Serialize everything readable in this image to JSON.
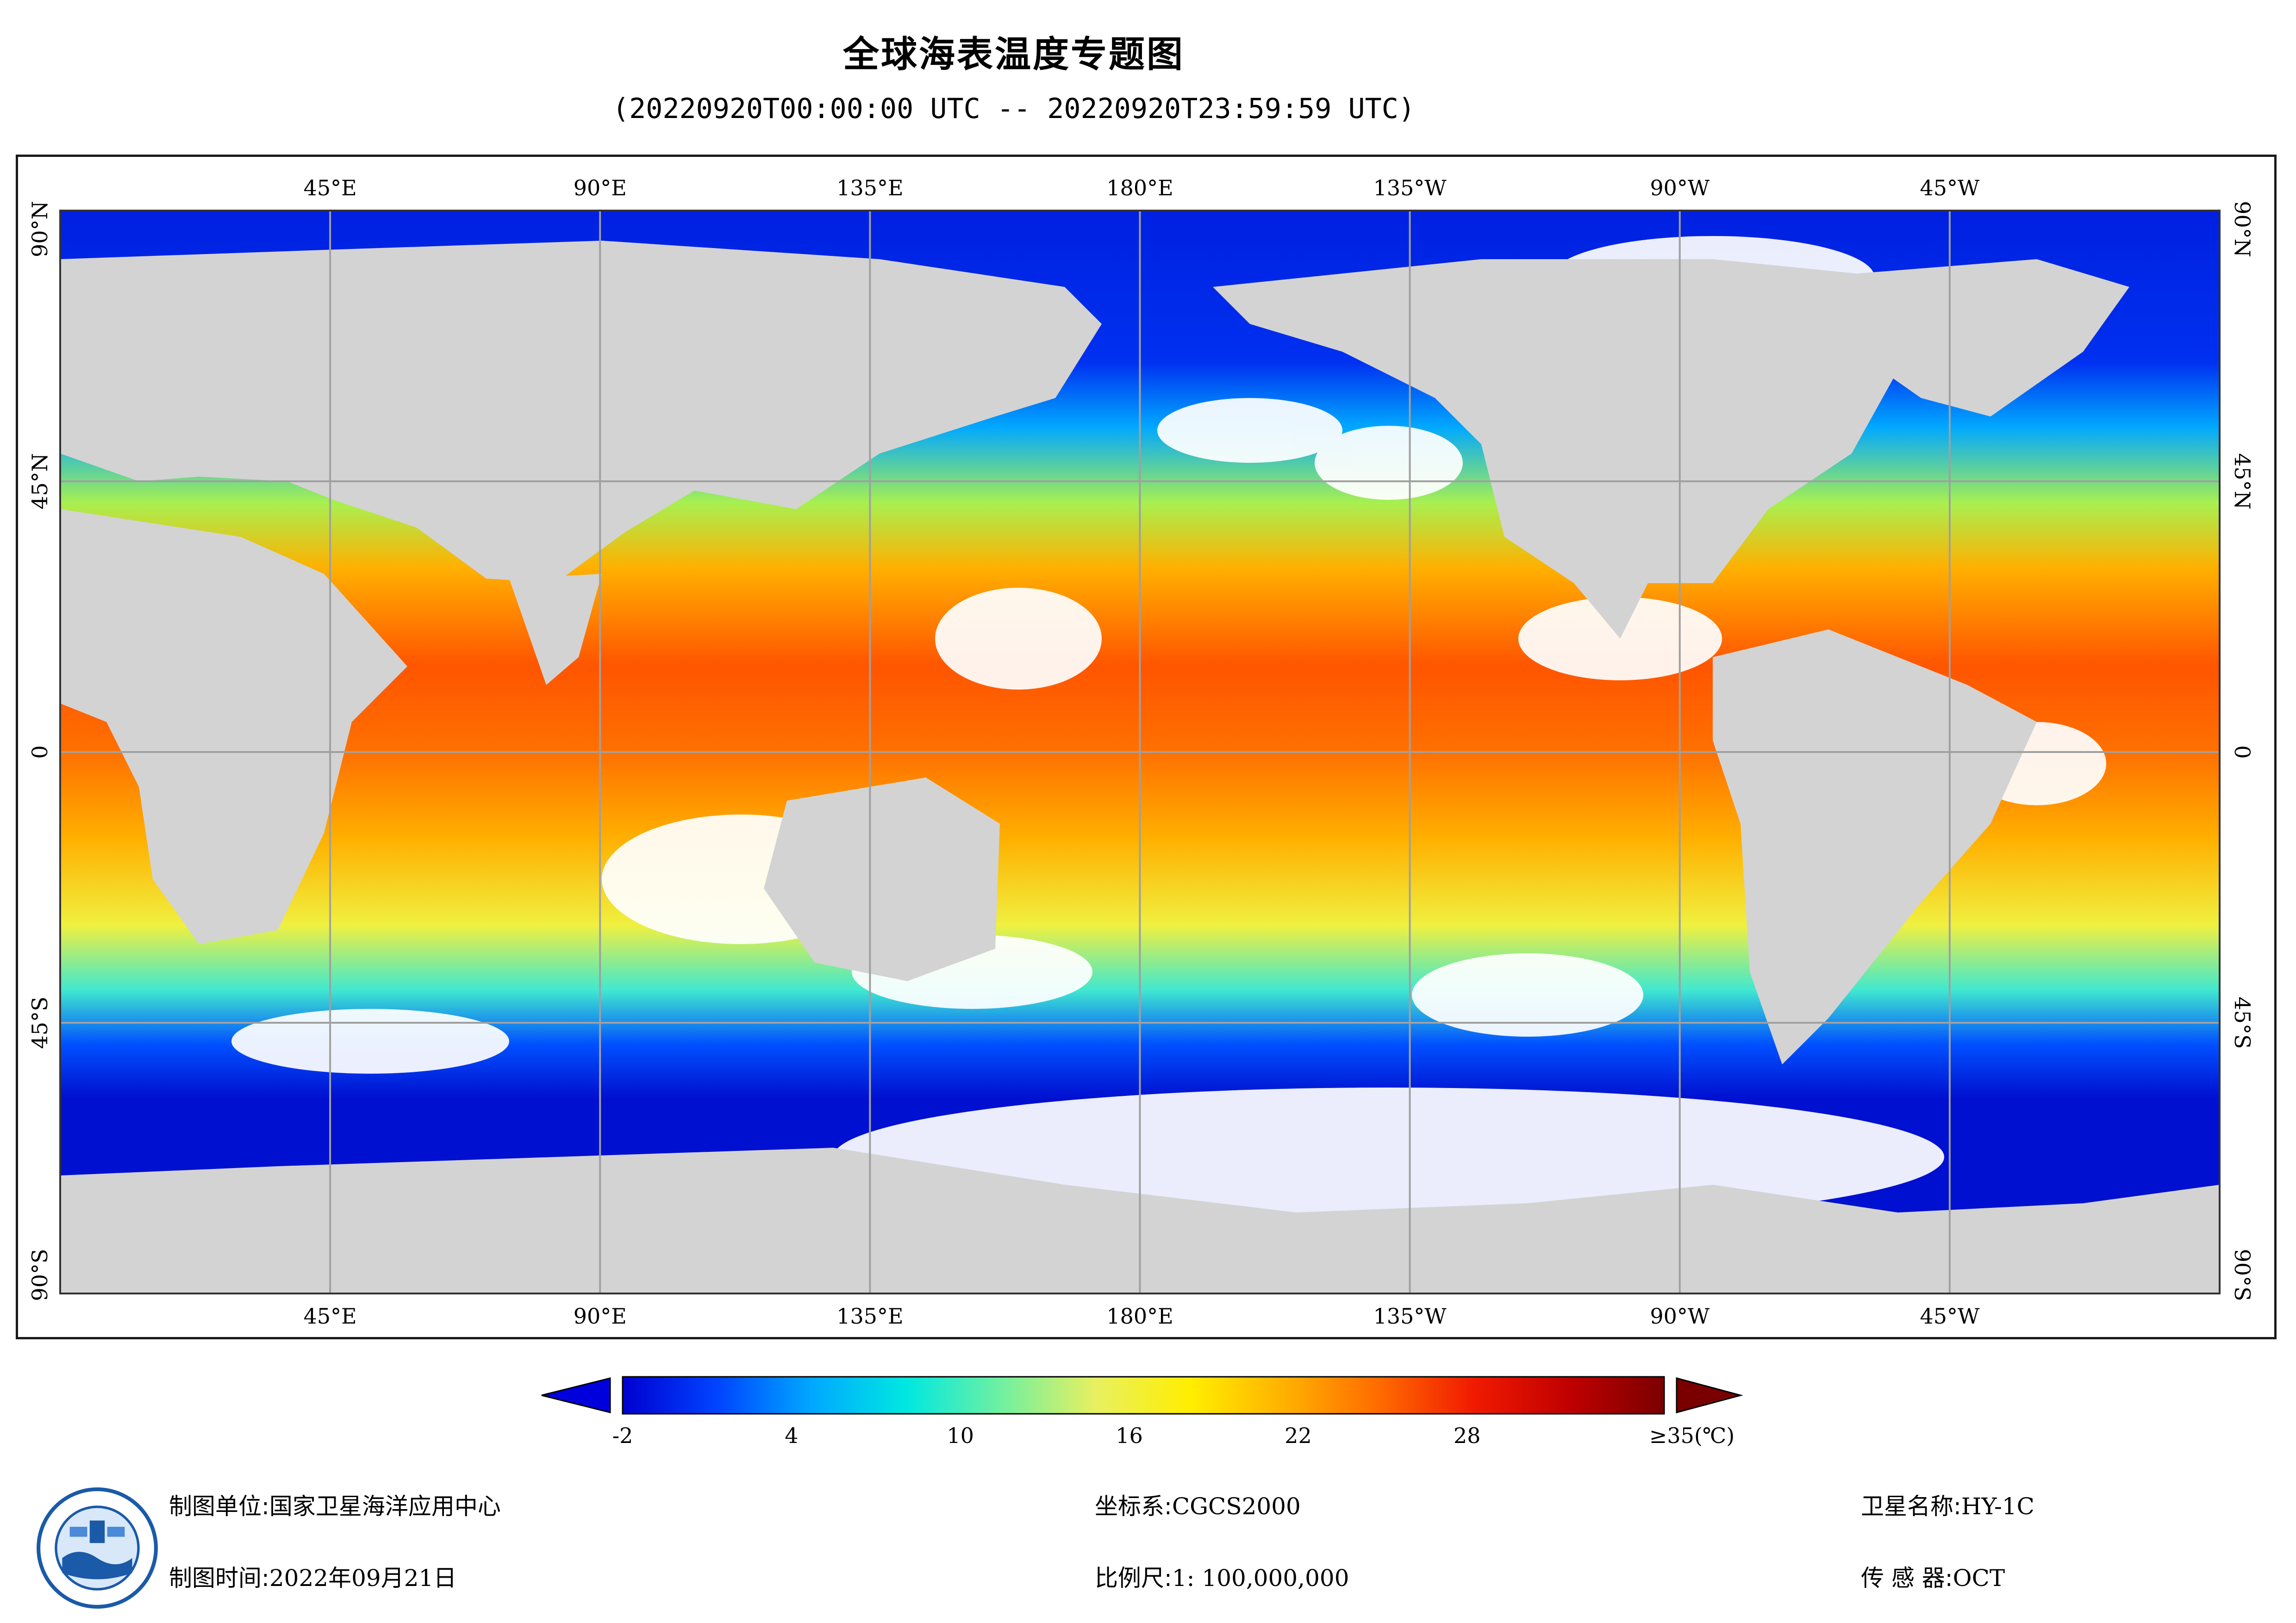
{
  "header": {
    "title": "全球海表温度专题图",
    "subtitle": "(20220920T00:00:00 UTC -- 20220920T23:59:59 UTC)"
  },
  "map": {
    "lon_labels_top": [
      "45°E",
      "90°E",
      "135°E",
      "180°E",
      "135°W",
      "90°W",
      "45°W"
    ],
    "lon_labels_bottom": [
      "45°E",
      "90°E",
      "135°E",
      "180°E",
      "135°W",
      "90°W",
      "45°W"
    ],
    "lat_labels": [
      "90°N",
      "45°N",
      "0",
      "45°S",
      "90°S"
    ],
    "longitudes_deg": [
      45,
      90,
      135,
      180,
      225,
      270,
      315
    ],
    "latitudes_deg": [
      90,
      45,
      0,
      -45,
      -90
    ],
    "lon_range": [
      0,
      360
    ],
    "lat_range": [
      -90,
      90
    ],
    "colors": {
      "land": "#d3d3d3",
      "nodata": "#ffffff",
      "grid": "#a0a0a0"
    }
  },
  "colorbar": {
    "tick_labels": [
      "-2",
      "4",
      "10",
      "16",
      "22",
      "28",
      "≥35(℃)"
    ],
    "tick_values": [
      -2,
      4,
      10,
      16,
      22,
      28,
      35
    ],
    "range": [
      -2,
      35
    ],
    "stops": [
      "#0000d0",
      "#0044ff",
      "#00a8ff",
      "#00e8e0",
      "#70f0a0",
      "#e8f060",
      "#ffee00",
      "#ffb000",
      "#ff6a00",
      "#f01a00",
      "#c00000",
      "#7a0000"
    ],
    "under_color": "#0000dd",
    "over_color": "#7a0000"
  },
  "footer": {
    "org_label": "制图单位:",
    "org_value": "国家卫星海洋应用中心",
    "time_label": "制图时间:",
    "time_value": "2022年09月21日",
    "crs_label": "坐标系:",
    "crs_value": "CGCS2000",
    "scale_label": "比例尺:",
    "scale_value": "1: 100,000,000",
    "satellite_label": "卫星名称:",
    "satellite_value": "HY-1C",
    "sensor_label": "传 感 器:",
    "sensor_value": "OCT"
  }
}
